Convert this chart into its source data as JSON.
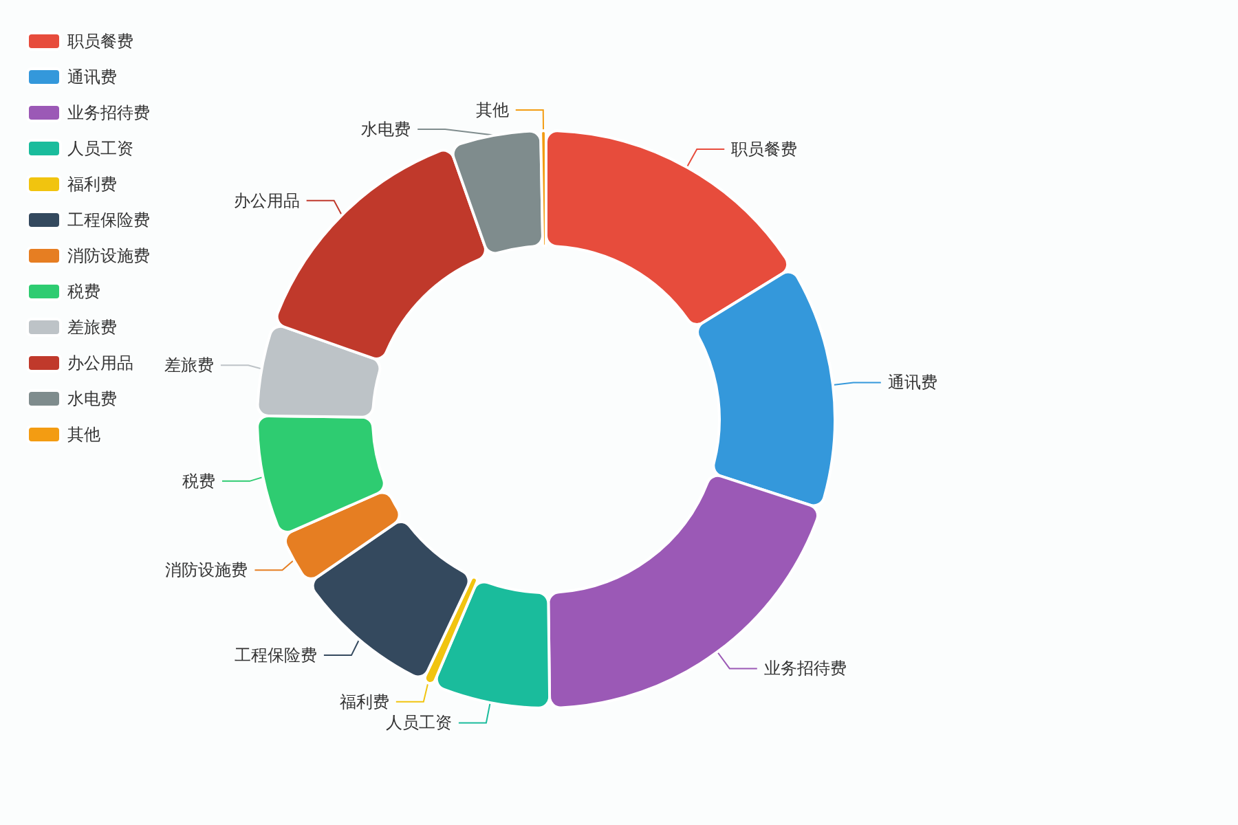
{
  "chart_data": {
    "type": "donut",
    "categories": [
      "职员餐费",
      "通讯费",
      "业务招待费",
      "人员工资",
      "福利费",
      "工程保险费",
      "消防设施费",
      "税费",
      "差旅费",
      "办公用品",
      "水电费",
      "其他"
    ],
    "values": [
      16.2,
      13.8,
      19.8,
      6.6,
      0.6,
      8.4,
      3,
      6.8,
      5.2,
      14.2,
      5.1,
      0.3
    ],
    "colors": [
      "#e74c3c",
      "#3498db",
      "#9b59b6",
      "#1abc9c",
      "#f1c40f",
      "#34495e",
      "#e67e22",
      "#2ecc71",
      "#bdc3c7",
      "#c0392b",
      "#7f8c8d",
      "#f39c12"
    ],
    "legend": "top left"
  }
}
